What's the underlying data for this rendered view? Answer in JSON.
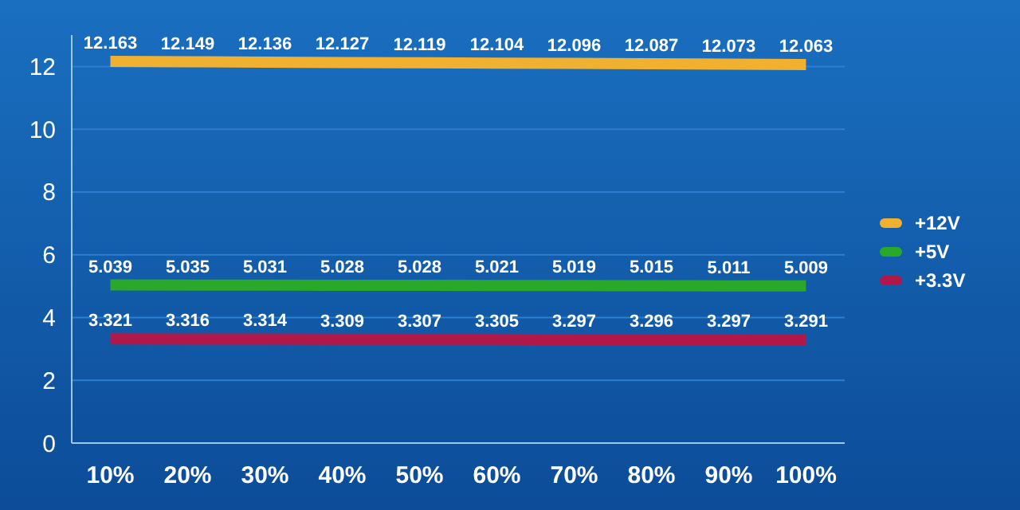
{
  "chart_data": {
    "type": "line",
    "categories": [
      "10%",
      "20%",
      "30%",
      "40%",
      "50%",
      "60%",
      "70%",
      "80%",
      "90%",
      "100%"
    ],
    "series": [
      {
        "name": "+12V",
        "color": "#f0b030",
        "values": [
          12.163,
          12.149,
          12.136,
          12.127,
          12.119,
          12.104,
          12.096,
          12.087,
          12.073,
          12.063
        ]
      },
      {
        "name": "+5V",
        "color": "#2aa82a",
        "values": [
          5.039,
          5.035,
          5.031,
          5.028,
          5.028,
          5.021,
          5.019,
          5.015,
          5.011,
          5.009
        ]
      },
      {
        "name": "+3.3V",
        "color": "#b0184a",
        "values": [
          3.321,
          3.316,
          3.314,
          3.309,
          3.307,
          3.305,
          3.297,
          3.296,
          3.297,
          3.291
        ]
      }
    ],
    "ylim": [
      0,
      13
    ],
    "yticks": [
      0,
      2,
      4,
      6,
      8,
      10,
      12
    ],
    "grid": "y",
    "legend": "right",
    "data_labels": true,
    "marker": "none",
    "line_style": "solid"
  }
}
